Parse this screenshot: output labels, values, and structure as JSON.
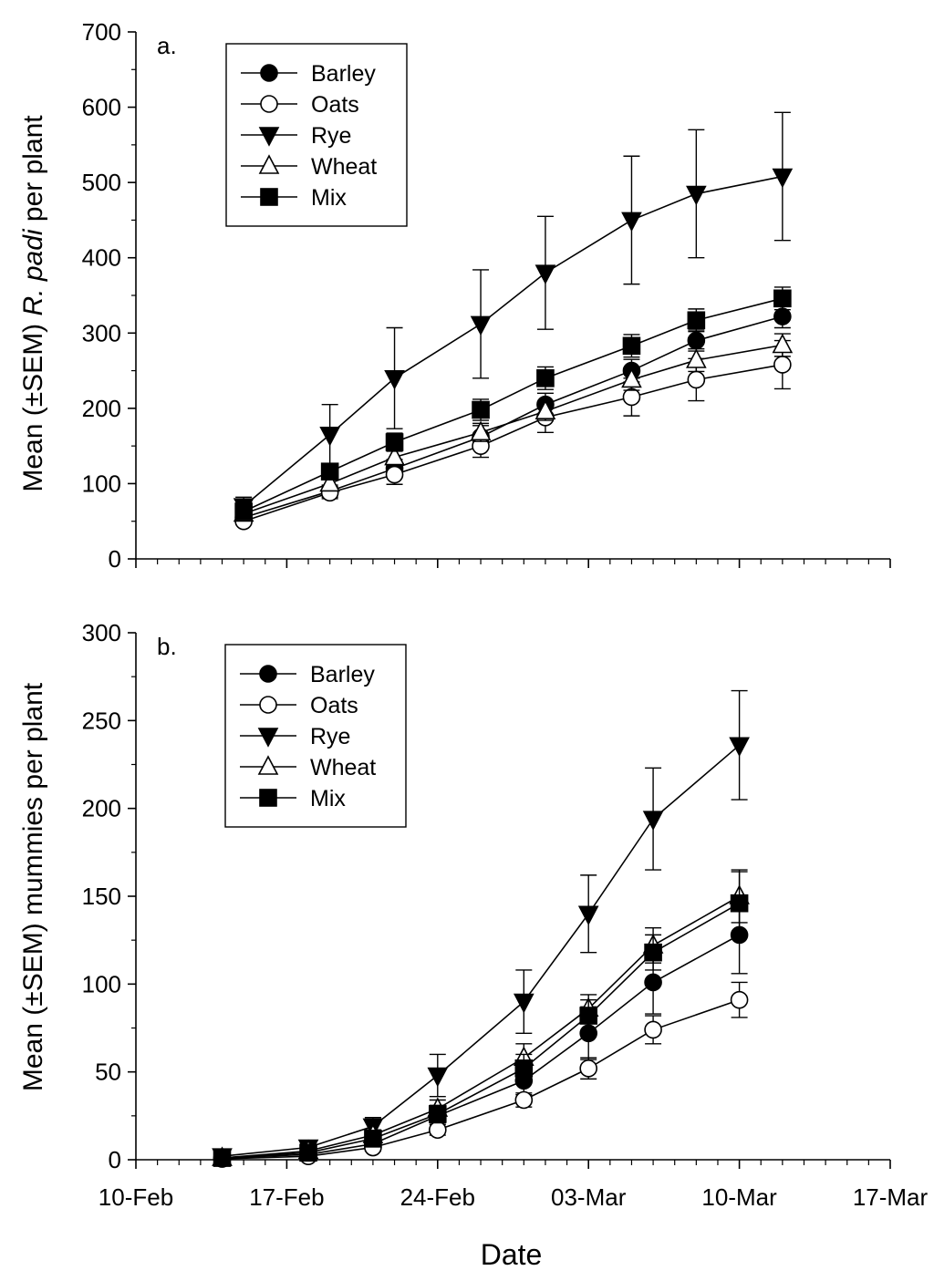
{
  "chart_data": [
    {
      "type": "line",
      "panel_label": "a.",
      "ylabel_pre": "Mean (±SEM) ",
      "ylabel_italic": "R. padi",
      "ylabel_post": " per plant",
      "ylim": [
        0,
        700
      ],
      "yticks": [
        0,
        100,
        200,
        300,
        400,
        500,
        600,
        700
      ],
      "xlim": [
        0,
        35
      ],
      "x": [
        5,
        9,
        12,
        16,
        19,
        23,
        26,
        30
      ],
      "legend_position": "top-left",
      "series": [
        {
          "name": "Barley",
          "marker": "circle-filled",
          "values": [
            55,
            90,
            120,
            162,
            205,
            250,
            290,
            322
          ],
          "sem": [
            6,
            8,
            12,
            15,
            15,
            15,
            14,
            15
          ]
        },
        {
          "name": "Oats",
          "marker": "circle-open",
          "values": [
            50,
            88,
            112,
            150,
            188,
            215,
            238,
            258
          ],
          "sem": [
            4,
            8,
            13,
            15,
            20,
            25,
            28,
            32
          ]
        },
        {
          "name": "Rye",
          "marker": "triangle-down-filled",
          "values": [
            70,
            165,
            240,
            312,
            380,
            450,
            485,
            508
          ],
          "sem": [
            12,
            40,
            67,
            72,
            75,
            85,
            85,
            85
          ]
        },
        {
          "name": "Wheat",
          "marker": "triangle-up-open",
          "values": [
            60,
            100,
            135,
            168,
            196,
            238,
            264,
            284
          ],
          "sem": [
            6,
            8,
            10,
            12,
            12,
            14,
            15,
            15
          ]
        },
        {
          "name": "Mix",
          "marker": "square-filled",
          "values": [
            63,
            116,
            155,
            198,
            240,
            283,
            317,
            346
          ],
          "sem": [
            8,
            10,
            12,
            14,
            15,
            15,
            15,
            15
          ]
        }
      ]
    },
    {
      "type": "line",
      "panel_label": "b.",
      "ylabel_pre": "Mean (±SEM) mummies per plant",
      "ylabel_italic": "",
      "ylabel_post": "",
      "ylim": [
        0,
        300
      ],
      "yticks": [
        0,
        50,
        100,
        150,
        200,
        250,
        300
      ],
      "xlim": [
        0,
        35
      ],
      "x": [
        4,
        8,
        11,
        14,
        18,
        21,
        24,
        28
      ],
      "x_ticks": [
        0,
        7,
        14,
        21,
        28,
        35
      ],
      "x_tick_labels": [
        "10-Feb",
        "17-Feb",
        "24-Feb",
        "03-Mar",
        "10-Mar",
        "17-Mar"
      ],
      "xlabel": "Date",
      "legend_position": "top-left",
      "series": [
        {
          "name": "Barley",
          "marker": "circle-filled",
          "values": [
            1,
            3,
            9,
            25,
            45,
            72,
            101,
            128
          ],
          "sem": [
            0.5,
            1,
            2,
            4,
            8,
            15,
            18,
            22
          ]
        },
        {
          "name": "Oats",
          "marker": "circle-open",
          "values": [
            0.5,
            2,
            7,
            17,
            34,
            52,
            74,
            91
          ],
          "sem": [
            0.5,
            1,
            2,
            3,
            4,
            6,
            8,
            10
          ]
        },
        {
          "name": "Rye",
          "marker": "triangle-down-filled",
          "values": [
            2,
            7,
            19,
            48,
            90,
            140,
            194,
            236
          ],
          "sem": [
            1,
            2,
            5,
            12,
            18,
            22,
            29,
            31
          ]
        },
        {
          "name": "Wheat",
          "marker": "triangle-up-open",
          "values": [
            1,
            5,
            14,
            29,
            58,
            86,
            122,
            150
          ],
          "sem": [
            0.5,
            1,
            3,
            5,
            8,
            8,
            10,
            15
          ]
        },
        {
          "name": "Mix",
          "marker": "square-filled",
          "values": [
            1,
            4,
            12,
            26,
            52,
            82,
            118,
            146
          ],
          "sem": [
            0.5,
            1,
            3,
            5,
            8,
            9,
            10,
            18
          ]
        }
      ]
    }
  ]
}
